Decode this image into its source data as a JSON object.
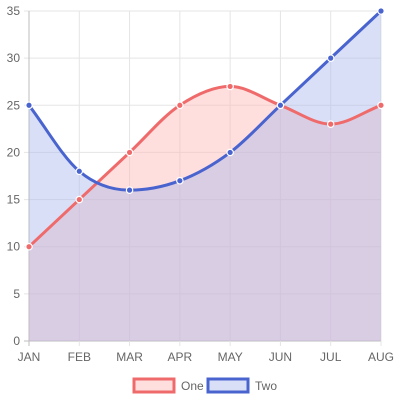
{
  "chart_data": {
    "type": "area",
    "categories": [
      "JAN",
      "FEB",
      "MAR",
      "APR",
      "MAY",
      "JUN",
      "JUL",
      "AUG"
    ],
    "series": [
      {
        "name": "One",
        "values": [
          10,
          15,
          20,
          25,
          27,
          25,
          23,
          25
        ],
        "color": "#ef6b6b",
        "fill": "rgba(255,182,182,0.45)"
      },
      {
        "name": "Two",
        "values": [
          25,
          18,
          16,
          17,
          20,
          25,
          30,
          35
        ],
        "color": "#4a64cf",
        "fill": "rgba(170,185,235,0.45)"
      }
    ],
    "ylim": [
      0,
      35
    ],
    "yticks": [
      0,
      5,
      10,
      15,
      20,
      25,
      30,
      35
    ],
    "grid": true,
    "legend": "bottom",
    "title": "",
    "xlabel": "",
    "ylabel": ""
  }
}
